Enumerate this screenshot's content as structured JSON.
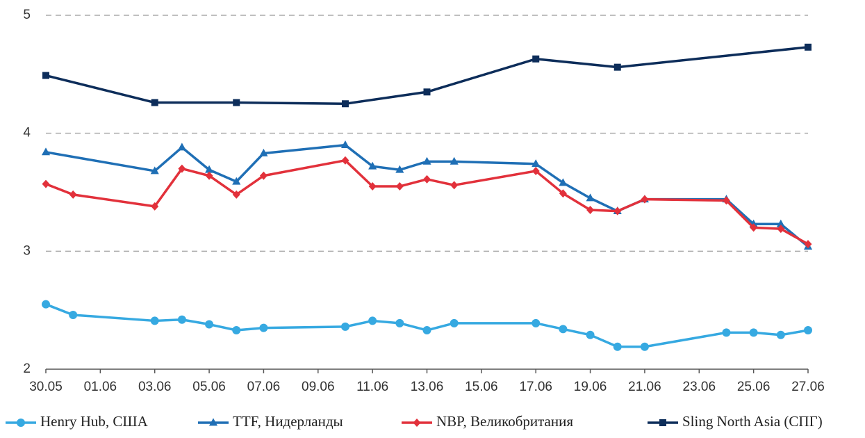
{
  "chart_data": {
    "type": "line",
    "xlim": [
      "30.05",
      "27.06"
    ],
    "xticks": [
      "30.05",
      "01.06",
      "03.06",
      "05.06",
      "07.06",
      "09.06",
      "11.06",
      "13.06",
      "15.06",
      "17.06",
      "19.06",
      "21.06",
      "23.06",
      "25.06",
      "27.06"
    ],
    "ylim": [
      2,
      5
    ],
    "yticks": [
      2,
      3,
      4,
      5
    ],
    "grid": true,
    "legend": "bottom",
    "series": [
      {
        "name": "Henry Hub, США",
        "color": "#36a9e1",
        "marker": "circle",
        "x": [
          "30.05",
          "31.05",
          "03.06",
          "04.06",
          "05.06",
          "06.06",
          "07.06",
          "10.06",
          "11.06",
          "12.06",
          "13.06",
          "14.06",
          "17.06",
          "18.06",
          "19.06",
          "20.06",
          "21.06",
          "24.06",
          "25.06",
          "26.06",
          "27.06"
        ],
        "values": [
          2.55,
          2.46,
          2.41,
          2.42,
          2.38,
          2.33,
          2.35,
          2.36,
          2.41,
          2.39,
          2.33,
          2.39,
          2.39,
          2.34,
          2.29,
          2.19,
          2.19,
          2.31,
          2.31,
          2.29,
          2.33
        ]
      },
      {
        "name": "TTF, Нидерланды",
        "color": "#1f6fb5",
        "marker": "triangle",
        "x": [
          "30.05",
          "03.06",
          "04.06",
          "05.06",
          "06.06",
          "07.06",
          "10.06",
          "11.06",
          "12.06",
          "13.06",
          "14.06",
          "17.06",
          "18.06",
          "19.06",
          "20.06",
          "21.06",
          "24.06",
          "25.06",
          "26.06",
          "27.06"
        ],
        "values": [
          3.84,
          3.68,
          3.88,
          3.69,
          3.59,
          3.83,
          3.9,
          3.72,
          3.69,
          3.76,
          3.76,
          3.74,
          3.58,
          3.45,
          3.34,
          3.44,
          3.44,
          3.23,
          3.23,
          3.04
        ]
      },
      {
        "name": "NBP, Великобритания",
        "color": "#e2313b",
        "marker": "diamond",
        "x": [
          "30.05",
          "31.05",
          "03.06",
          "04.06",
          "05.06",
          "06.06",
          "07.06",
          "10.06",
          "11.06",
          "12.06",
          "13.06",
          "14.06",
          "17.06",
          "18.06",
          "19.06",
          "20.06",
          "21.06",
          "24.06",
          "25.06",
          "26.06",
          "27.06"
        ],
        "values": [
          3.57,
          3.48,
          3.38,
          3.7,
          3.64,
          3.48,
          3.64,
          3.77,
          3.55,
          3.55,
          3.61,
          3.56,
          3.68,
          3.49,
          3.35,
          3.34,
          3.44,
          3.43,
          3.2,
          3.19,
          3.06
        ]
      },
      {
        "name": "Sling North Asia (СПГ)",
        "color": "#0d2d5a",
        "marker": "square",
        "x": [
          "30.05",
          "03.06",
          "06.06",
          "10.06",
          "13.06",
          "17.06",
          "20.06",
          "27.06"
        ],
        "values": [
          4.49,
          4.26,
          4.26,
          4.25,
          4.35,
          4.63,
          4.56,
          4.73
        ]
      }
    ]
  }
}
